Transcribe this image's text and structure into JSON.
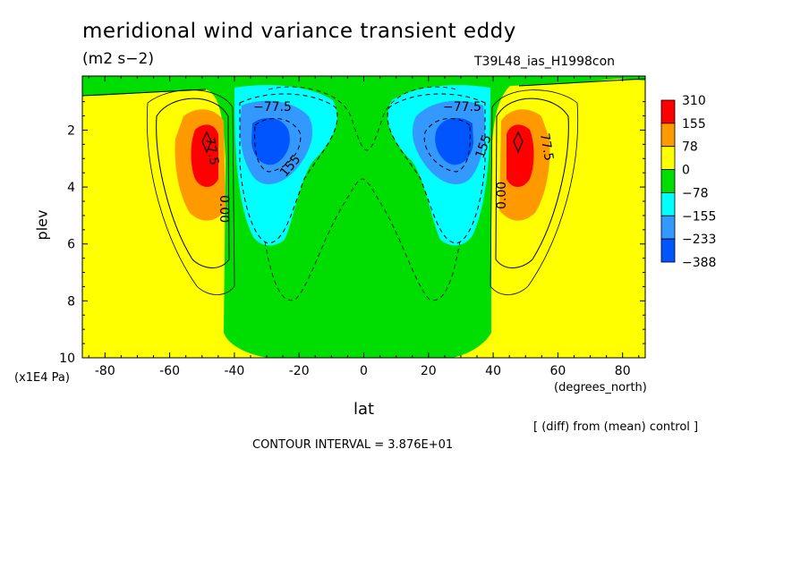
{
  "chart_data": {
    "type": "heatmap",
    "title": "meridional wind variance transient eddy",
    "units": "(m2 s−2)",
    "run_label": "T39L48_ias_H1998con",
    "xlabel": "lat",
    "x_unit": "(degrees_north)",
    "ylabel": "plev",
    "y_unit": "(x1E4 Pa)",
    "xlim": [
      -87,
      87
    ],
    "ylim": [
      10,
      0.1
    ],
    "x_ticks": [
      -80,
      -60,
      -40,
      -20,
      0,
      20,
      40,
      60,
      80
    ],
    "y_ticks": [
      2,
      4,
      6,
      8,
      10
    ],
    "colorbar_levels": [
      "310",
      "155",
      "78",
      "0",
      "−78",
      "−155",
      "−233",
      "−388"
    ],
    "colors": {
      "very_high": "#ff0000",
      "high": "#ff9900",
      "positive": "#ffff00",
      "near_zero": "#00dd00",
      "negative": "#00ffff",
      "more_negative": "#3399ff",
      "most_negative": "#0055ff"
    },
    "contour_labels": [
      "−77.5",
      "−77.5",
      "155",
      "155",
      "77.5",
      "77.5",
      "0.00",
      "0.00"
    ],
    "diff_note": "[ (diff) from (mean) control ]",
    "contour_interval": "CONTOUR INTERVAL = 3.876E+01"
  }
}
